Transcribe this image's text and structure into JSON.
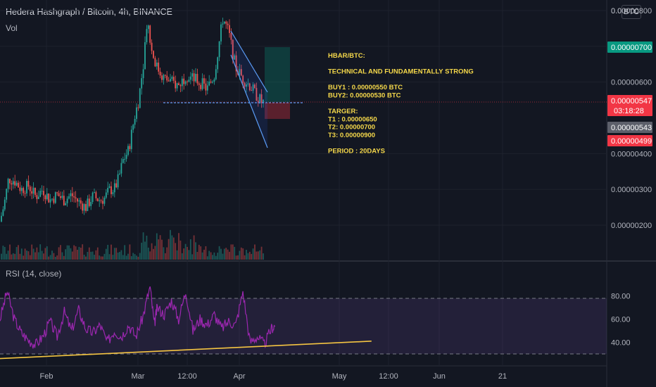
{
  "header": {
    "title": "Hedera Hashgraph / Bitcoin, 4h, BINANCE",
    "vol_label": "Vol",
    "rsi_label": "RSI (14, close)",
    "currency_chip": "BTC"
  },
  "annotation": [
    "HBAR/BTC:",
    "",
    "TECHNICAL AND FUNDAMENTALLY STRONG",
    "",
    "BUY1 : 0.00000550 BTC",
    "BUY2: 0.00000530 BTC",
    "",
    "TARGER:",
    "T1 : 0.00000650",
    "T2:  0.00000700",
    "T3:  0.00000900",
    "",
    "PERIOD : 20DAYS"
  ],
  "price_tags": [
    {
      "text": "0.00000700",
      "color": "#089981"
    },
    {
      "text": "0.00000547",
      "color": "#f23645",
      "sub": "03:18:28"
    },
    {
      "text": "0.00000543",
      "color": "#5d606b"
    },
    {
      "text": "0.00000499",
      "color": "#f23645"
    }
  ],
  "colors": {
    "bg": "#131722",
    "up": "#26a69a",
    "down": "#ef5350",
    "rsi": "#9c27b0",
    "trend": "#f5c542",
    "channel": "#2962ff",
    "annotation": "#f5d84a"
  },
  "chart_data": [
    {
      "type": "candlestick",
      "title": "Hedera Hashgraph / Bitcoin, 4h, BINANCE",
      "y_axis": {
        "ticks": [
          "0.00000200",
          "0.00000300",
          "0.00000400",
          "0.00000600",
          "0.00000700",
          "0.00000800"
        ],
        "range": [
          1.3e-06,
          8e-06
        ],
        "top_label": "0.0"
      },
      "x_axis": {
        "ticks": [
          "Feb",
          "Mar",
          "12:00",
          "Apr",
          "May",
          "12:00",
          "Jun",
          "21"
        ]
      },
      "series": [
        {
          "close_path": [
            [
              0.0,
              210
            ],
            [
              0.3,
              260
            ],
            [
              0.6,
              330
            ],
            [
              1.0,
              325
            ],
            [
              1.5,
              300
            ],
            [
              2.0,
              310
            ],
            [
              2.5,
              280
            ],
            [
              3.0,
              300
            ],
            [
              3.5,
              270
            ],
            [
              4.0,
              285
            ],
            [
              4.5,
              270
            ],
            [
              5.0,
              285
            ],
            [
              5.5,
              265
            ],
            [
              6.0,
              250
            ],
            [
              6.5,
              280
            ],
            [
              7.0,
              270
            ],
            [
              7.3,
              275
            ],
            [
              7.7,
              300
            ],
            [
              8.0,
              300
            ],
            [
              8.3,
              330
            ],
            [
              8.6,
              380
            ],
            [
              9.0,
              410
            ],
            [
              9.4,
              500
            ],
            [
              9.7,
              550
            ],
            [
              10.0,
              640
            ],
            [
              10.3,
              780
            ],
            [
              10.6,
              690
            ],
            [
              11.0,
              640
            ],
            [
              11.5,
              610
            ],
            [
              12.0,
              600
            ],
            [
              12.5,
              590
            ],
            [
              13.0,
              620
            ],
            [
              13.5,
              610
            ],
            [
              14.0,
              600
            ],
            [
              14.5,
              580
            ],
            [
              15.0,
              620
            ],
            [
              15.3,
              700
            ],
            [
              15.6,
              780
            ],
            [
              16.0,
              740
            ],
            [
              16.5,
              640
            ],
            [
              17.0,
              610
            ],
            [
              17.5,
              590
            ],
            [
              18.0,
              560
            ],
            [
              18.3,
              545
            ],
            [
              18.5,
              543
            ]
          ]
        }
      ],
      "volume_panel": true,
      "buy_zones": [
        5.5e-06,
        5.3e-06
      ],
      "targets": [
        6.5e-06,
        7e-06,
        9e-06
      ],
      "last_price": 5.47e-06
    },
    {
      "type": "line",
      "title": "RSI (14, close)",
      "y_axis": {
        "ticks": [
          "40.00",
          "60.00",
          "80.00"
        ],
        "range": [
          25,
          95
        ]
      },
      "bands": [
        30,
        70
      ],
      "series": [
        {
          "values": [
            [
              0.0,
              60
            ],
            [
              0.5,
              84
            ],
            [
              1.0,
              60
            ],
            [
              1.5,
              48
            ],
            [
              2.0,
              42
            ],
            [
              2.5,
              38
            ],
            [
              3.0,
              45
            ],
            [
              3.5,
              58
            ],
            [
              4.0,
              45
            ],
            [
              4.5,
              66
            ],
            [
              5.0,
              50
            ],
            [
              5.5,
              68
            ],
            [
              6.0,
              52
            ],
            [
              6.5,
              48
            ],
            [
              7.0,
              55
            ],
            [
              7.5,
              40
            ],
            [
              8.0,
              50
            ],
            [
              8.5,
              45
            ],
            [
              9.0,
              55
            ],
            [
              9.5,
              45
            ],
            [
              10.0,
              62
            ],
            [
              10.5,
              88
            ],
            [
              10.8,
              55
            ],
            [
              11.0,
              70
            ],
            [
              11.5,
              64
            ],
            [
              12.0,
              76
            ],
            [
              12.5,
              60
            ],
            [
              13.0,
              84
            ],
            [
              13.5,
              50
            ],
            [
              14.0,
              60
            ],
            [
              14.5,
              55
            ],
            [
              15.0,
              64
            ],
            [
              15.5,
              52
            ],
            [
              16.0,
              58
            ],
            [
              16.5,
              55
            ],
            [
              17.0,
              84
            ],
            [
              17.5,
              40
            ],
            [
              18.0,
              45
            ],
            [
              18.5,
              38
            ],
            [
              19.0,
              52
            ],
            [
              19.3,
              55
            ]
          ]
        }
      ],
      "trendline": [
        [
          0,
          26
        ],
        [
          26,
          41
        ]
      ]
    }
  ]
}
